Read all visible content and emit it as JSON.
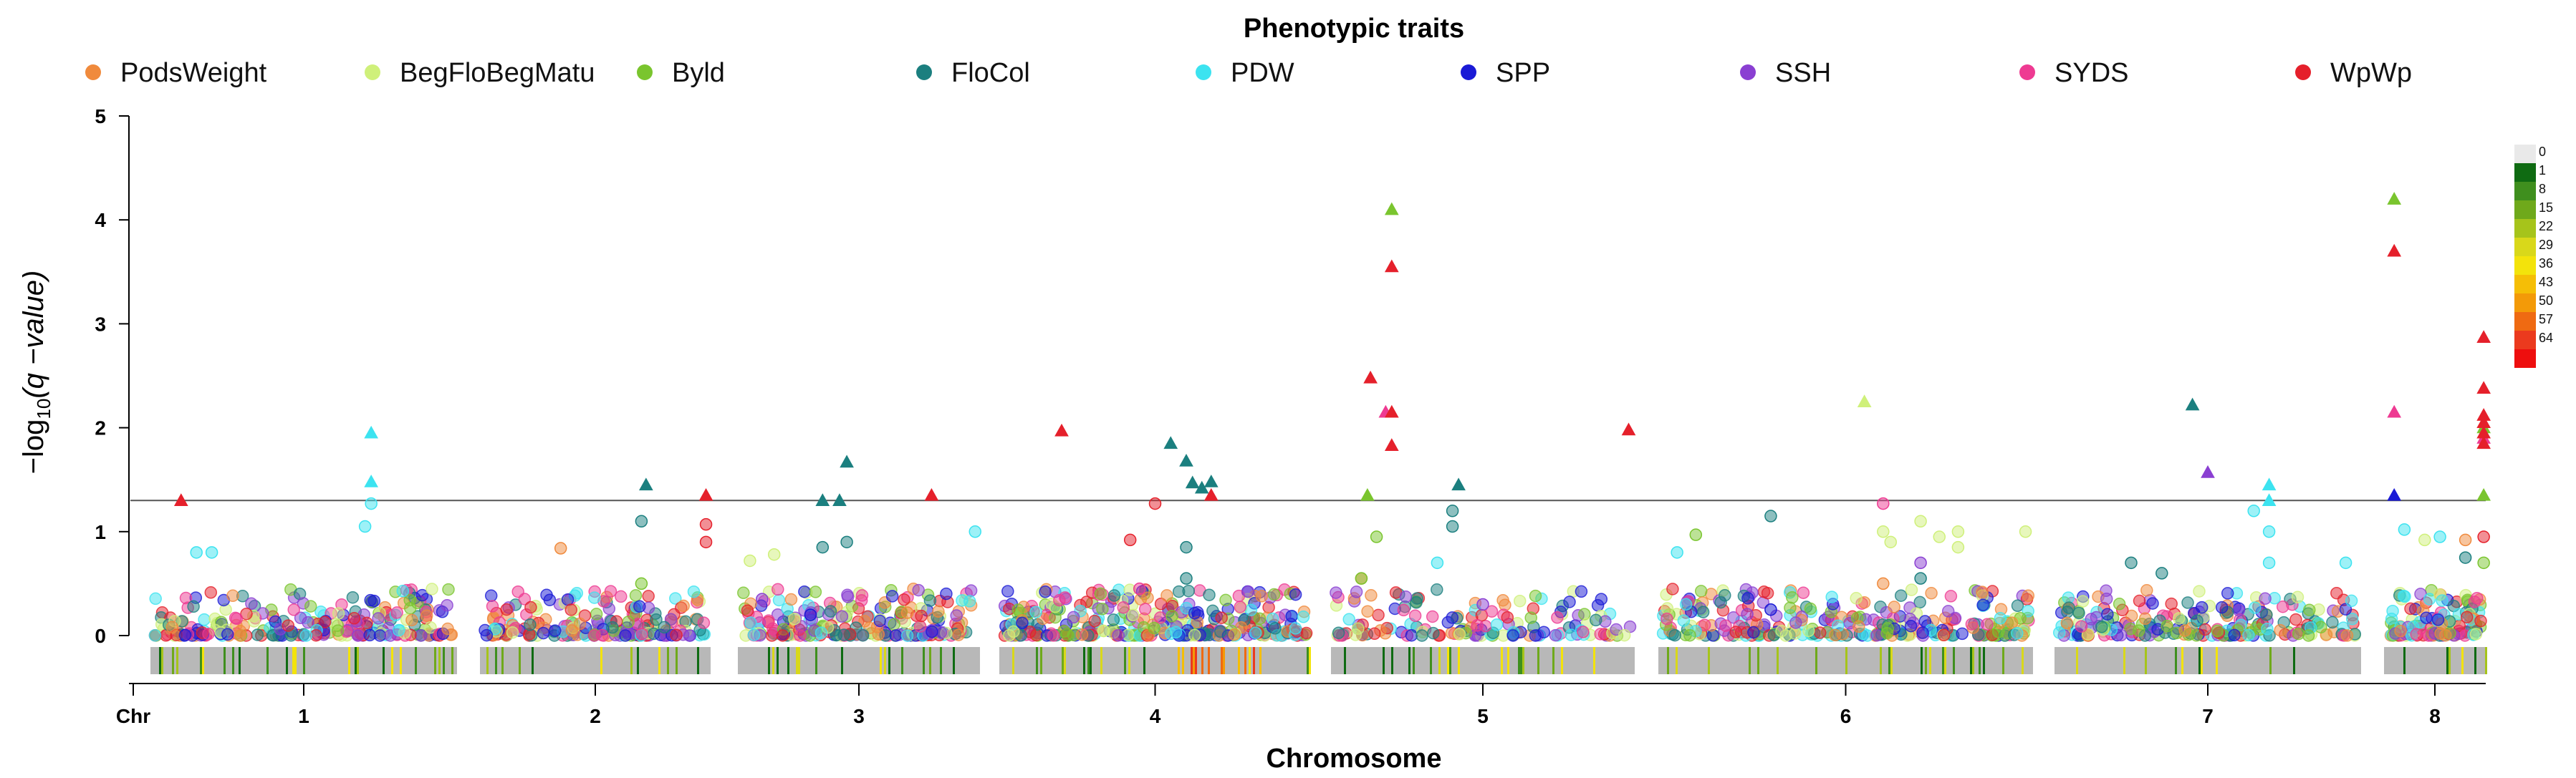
{
  "chart_data": {
    "type": "scatter",
    "title": "Phenotypic traits",
    "xlabel": "Chromosome",
    "ylabel_prefix": "−log",
    "ylabel_sub": "10",
    "ylabel_suffix": "(q −value)",
    "x_tick_chr": "Chr",
    "ylim": [
      0,
      5
    ],
    "yticks": [
      "0",
      "1",
      "2",
      "3",
      "4",
      "5"
    ],
    "threshold": 1.3,
    "chromosomes": [
      "1",
      "2",
      "3",
      "4",
      "5",
      "6",
      "7",
      "8"
    ],
    "legend_position": "top",
    "series": [
      {
        "name": "PodsWeight",
        "color": "#f08a3c",
        "points": [
          [
            1.35,
            0.84
          ],
          [
            4.1,
            0.55
          ],
          [
            5.6,
            0.5
          ],
          [
            7.8,
            0.92
          ],
          [
            2.7,
            0.22
          ]
        ]
      },
      {
        "name": "BegFloBegMatu",
        "color": "#cff07a",
        "points": [
          [
            5.55,
            2.25
          ],
          [
            5.6,
            1.0
          ],
          [
            5.62,
            0.9
          ],
          [
            5.7,
            1.1
          ],
          [
            5.75,
            0.95
          ],
          [
            5.8,
            1.0
          ],
          [
            5.8,
            0.85
          ],
          [
            2.15,
            0.78
          ],
          [
            2.05,
            0.72
          ],
          [
            6.0,
            1.0
          ],
          [
            7.4,
            0.92
          ]
        ]
      },
      {
        "name": "Byld",
        "color": "#7ac52e",
        "points": [
          [
            4.2,
            4.1
          ],
          [
            7.1,
            4.2
          ],
          [
            4.12,
            1.35
          ],
          [
            8.05,
            2.0
          ],
          [
            8.05,
            1.35
          ],
          [
            4.15,
            0.95
          ],
          [
            4.1,
            0.55
          ],
          [
            1.7,
            0.5
          ],
          [
            5.1,
            0.97
          ],
          [
            8.02,
            0.7
          ]
        ]
      },
      {
        "name": "FloCol",
        "color": "#1b7f7f",
        "points": [
          [
            3.55,
            1.85
          ],
          [
            3.6,
            1.68
          ],
          [
            3.62,
            1.47
          ],
          [
            3.65,
            1.42
          ],
          [
            3.68,
            1.48
          ],
          [
            1.72,
            1.45
          ],
          [
            2.35,
            1.3
          ],
          [
            2.42,
            1.3
          ],
          [
            2.45,
            1.67
          ],
          [
            4.42,
            1.45
          ],
          [
            6.45,
            2.22
          ],
          [
            4.4,
            1.2
          ],
          [
            4.4,
            1.05
          ],
          [
            3.6,
            0.85
          ],
          [
            3.6,
            0.55
          ],
          [
            5.3,
            1.15
          ],
          [
            5.7,
            0.55
          ],
          [
            7.8,
            0.75
          ],
          [
            6.25,
            0.7
          ],
          [
            2.35,
            0.85
          ],
          [
            2.45,
            0.9
          ],
          [
            6.35,
            0.6
          ],
          [
            1.7,
            1.1
          ]
        ]
      },
      {
        "name": "PDW",
        "color": "#3ce3f0",
        "points": [
          [
            0.72,
            1.95
          ],
          [
            0.72,
            1.48
          ],
          [
            0.72,
            1.27
          ],
          [
            0.7,
            1.05
          ],
          [
            0.15,
            0.8
          ],
          [
            0.2,
            0.8
          ],
          [
            3.0,
            1.0
          ],
          [
            6.7,
            1.45
          ],
          [
            6.7,
            1.3
          ],
          [
            6.65,
            1.2
          ],
          [
            6.7,
            1.0
          ],
          [
            6.7,
            0.7
          ],
          [
            7.2,
            1.02
          ],
          [
            7.55,
            0.95
          ],
          [
            6.95,
            0.7
          ],
          [
            5.05,
            0.8
          ],
          [
            4.35,
            0.7
          ]
        ]
      },
      {
        "name": "SPP",
        "color": "#1a1ad6",
        "points": [
          [
            7.1,
            1.35
          ],
          [
            5.3,
            0.25
          ],
          [
            2.3,
            0.2
          ]
        ]
      },
      {
        "name": "SSH",
        "color": "#8a3fd2",
        "points": [
          [
            6.5,
            1.57
          ],
          [
            5.7,
            0.7
          ],
          [
            2.1,
            0.35
          ],
          [
            4.5,
            0.3
          ]
        ]
      },
      {
        "name": "SYDS",
        "color": "#ee3a92",
        "points": [
          [
            7.1,
            2.15
          ],
          [
            4.18,
            2.15
          ],
          [
            5.6,
            1.27
          ],
          [
            8.0,
            1.9
          ],
          [
            3.45,
            0.45
          ]
        ]
      },
      {
        "name": "WpWp",
        "color": "#e5202b",
        "points": [
          [
            0.1,
            1.3
          ],
          [
            2.0,
            1.35
          ],
          [
            2.0,
            1.07
          ],
          [
            2.0,
            0.9
          ],
          [
            2.8,
            1.35
          ],
          [
            3.2,
            1.97
          ],
          [
            3.5,
            1.27
          ],
          [
            3.68,
            1.35
          ],
          [
            4.13,
            2.48
          ],
          [
            4.2,
            2.15
          ],
          [
            4.2,
            1.83
          ],
          [
            4.2,
            3.55
          ],
          [
            5.0,
            1.98
          ],
          [
            7.1,
            3.7
          ],
          [
            8.0,
            2.87
          ],
          [
            8.05,
            2.38
          ],
          [
            8.0,
            2.12
          ],
          [
            8.0,
            2.05
          ],
          [
            8.0,
            1.95
          ],
          [
            8.0,
            1.85
          ],
          [
            3.42,
            0.92
          ],
          [
            8.0,
            0.95
          ]
        ]
      }
    ],
    "density_legend": {
      "labels": [
        "0",
        "1",
        "8",
        "15",
        "22",
        "29",
        "36",
        "43",
        "50",
        "57",
        "64"
      ],
      "colors": [
        "#e9e9e9",
        "#0f6b12",
        "#3f8f1e",
        "#6fa91b",
        "#a6c41b",
        "#d9d81a",
        "#f3e30b",
        "#f5be06",
        "#f39a08",
        "#ef6a12",
        "#eb3a1e",
        "#ee0e0e"
      ]
    }
  }
}
